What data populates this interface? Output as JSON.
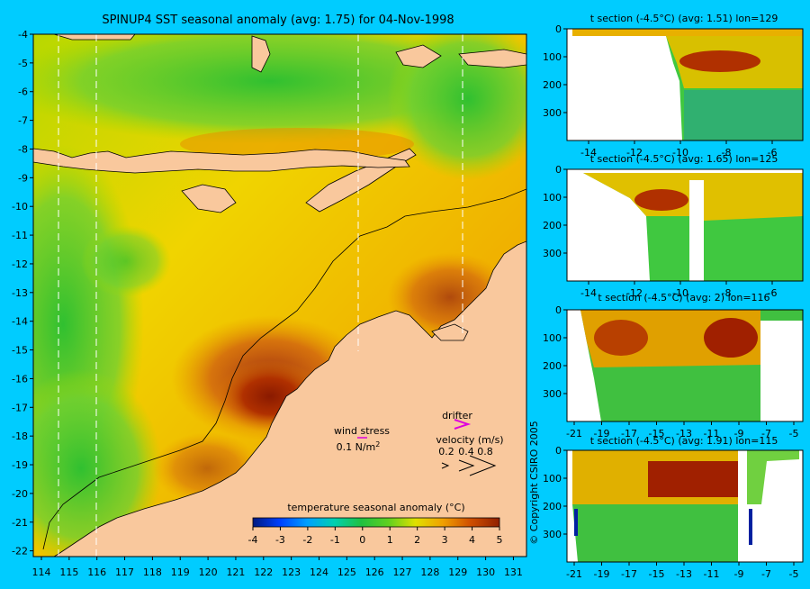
{
  "map": {
    "title": "SPINUP4 SST seasonal anomaly (avg: 1.75) for 04-Nov-1998",
    "lat_labels": [
      "-4",
      "-5",
      "-6",
      "-7",
      "-8",
      "-9",
      "-10",
      "-11",
      "-12",
      "-13",
      "-14",
      "-15",
      "-16",
      "-17",
      "-18",
      "-19",
      "-20",
      "-21",
      "-22"
    ],
    "lon_labels": [
      "114",
      "115",
      "116",
      "117",
      "118",
      "119",
      "120",
      "121",
      "122",
      "123",
      "124",
      "125",
      "126",
      "127",
      "128",
      "129",
      "130",
      "131"
    ],
    "wind_stress": {
      "label": "wind stress",
      "scale": "0.1 N/m",
      "superscript": "2"
    },
    "drifter": {
      "label": "drifter",
      "velocity_label": "velocity (m/s)",
      "speeds": [
        "0.2",
        "0.4",
        "0.8"
      ],
      "arrow_color": "#dd00dd"
    },
    "colorbar": {
      "title": "temperature seasonal anomaly (°C)",
      "ticks": [
        "-4",
        "-3",
        "-2",
        "-1",
        "0",
        "1",
        "2",
        "3",
        "4",
        "5"
      ],
      "colors": [
        "#001a80",
        "#0040ff",
        "#00a0ff",
        "#00d0b0",
        "#20c040",
        "#60d020",
        "#e0e000",
        "#f0a000",
        "#d05000",
        "#902000"
      ]
    },
    "colors": {
      "land": "#f9c89d",
      "sea": "#e8c400",
      "frame": "#00ccff"
    }
  },
  "sections": [
    {
      "title": "t section (-4.5°C) (avg: 1.51) lon=129",
      "x_ticks": [
        "-14",
        "-12",
        "-10",
        "-8",
        "-6"
      ],
      "y_ticks": [
        "0",
        "100",
        "200",
        "300"
      ]
    },
    {
      "title": "t section (-4.5°C) (avg: 1.65) lon=125",
      "x_ticks": [
        "-14",
        "-12",
        "-10",
        "-8",
        "-6"
      ],
      "y_ticks": [
        "0",
        "100",
        "200",
        "300"
      ]
    },
    {
      "title": "t section (-4.5°C) (avg: 2) lon=116",
      "x_ticks": [
        "-21",
        "-19",
        "-17",
        "-15",
        "-13",
        "-11",
        "-9",
        "-7",
        "-5"
      ],
      "y_ticks": [
        "0",
        "100",
        "200",
        "300"
      ]
    },
    {
      "title": "t section (-4.5°C) (avg: 1.91) lon=115",
      "x_ticks": [
        "-21",
        "-19",
        "-17",
        "-15",
        "-13",
        "-11",
        "-9",
        "-7",
        "-5"
      ],
      "y_ticks": [
        "0",
        "100",
        "200",
        "300"
      ]
    }
  ],
  "copyright": "© Copyright CSIRO 2005"
}
